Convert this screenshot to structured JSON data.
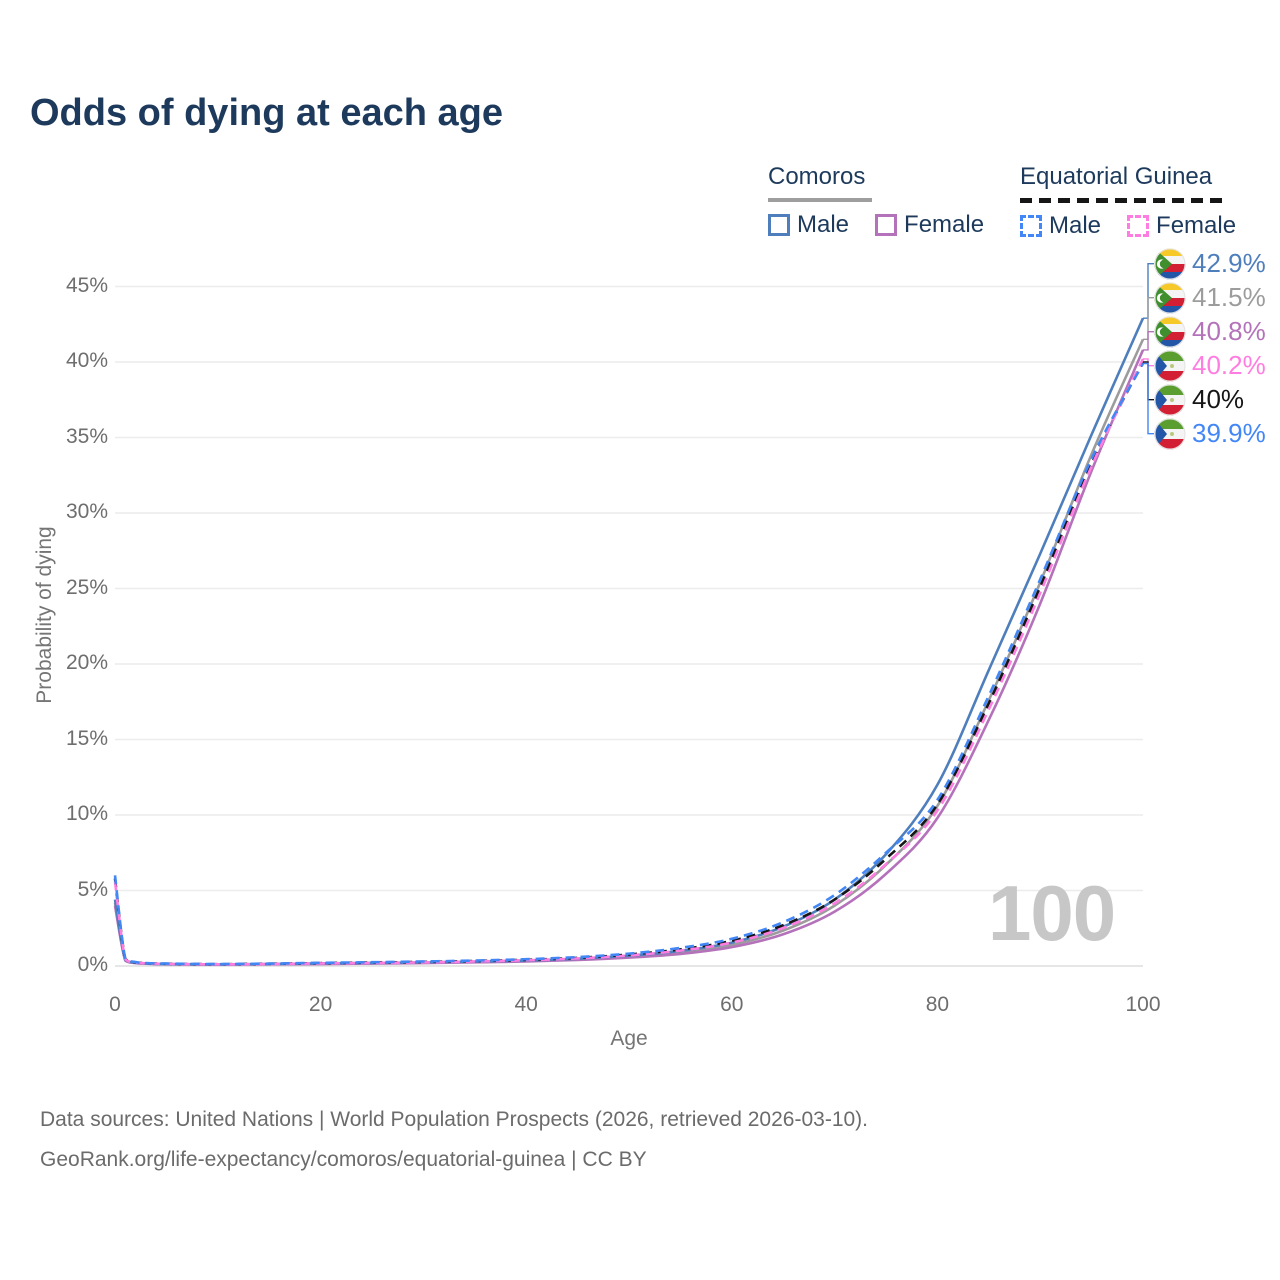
{
  "title": "Odds of dying at each age",
  "legend": {
    "groups": [
      {
        "label": "Comoros",
        "underline_style": "solid",
        "underline_color": "#9e9e9e",
        "items": [
          {
            "label": "Male",
            "color": "#4e7fbc",
            "dashed": false
          },
          {
            "label": "Female",
            "color": "#b472ba",
            "dashed": false
          }
        ]
      },
      {
        "label": "Equatorial Guinea",
        "underline_style": "dashed",
        "underline_color": "#161616",
        "items": [
          {
            "label": "Male",
            "color": "#4287f5",
            "dashed": true
          },
          {
            "label": "Female",
            "color": "#ff7de1",
            "dashed": true
          }
        ]
      }
    ]
  },
  "chart_data": {
    "type": "line",
    "title": "Odds of dying at each age",
    "xlabel": "Age",
    "ylabel": "Probability of dying",
    "xlim": [
      0,
      100
    ],
    "ylim": [
      0,
      45
    ],
    "x_ticks": [
      0,
      20,
      40,
      60,
      80,
      100
    ],
    "y_ticks": [
      "0%",
      "5%",
      "10%",
      "15%",
      "20%",
      "25%",
      "30%",
      "35%",
      "40%",
      "45%"
    ],
    "grid": "horizontal",
    "legend_position": "top-right",
    "x": [
      0,
      1,
      2,
      3,
      5,
      10,
      15,
      20,
      25,
      30,
      35,
      40,
      45,
      50,
      55,
      60,
      65,
      70,
      75,
      80,
      85,
      90,
      95,
      100
    ],
    "series": [
      {
        "name": "Comoros Male",
        "country": "Comoros",
        "sex": "Male",
        "color": "#4e7fbc",
        "dash": "solid",
        "flag": "comoros",
        "end_label": "42.9%",
        "values": [
          4.4,
          0.4,
          0.22,
          0.17,
          0.13,
          0.11,
          0.13,
          0.17,
          0.2,
          0.24,
          0.29,
          0.36,
          0.48,
          0.68,
          1.0,
          1.55,
          2.6,
          4.4,
          7.4,
          12.0,
          19.6,
          27.3,
          35.2,
          42.9
        ]
      },
      {
        "name": "Comoros Both sexes",
        "country": "Comoros",
        "sex": "Both",
        "color": "#9c9c9c",
        "dash": "solid",
        "flag": "comoros",
        "end_label": "41.5%",
        "values": [
          4.2,
          0.38,
          0.21,
          0.16,
          0.12,
          0.1,
          0.12,
          0.15,
          0.18,
          0.22,
          0.27,
          0.33,
          0.44,
          0.62,
          0.9,
          1.4,
          2.35,
          4.0,
          6.7,
          10.6,
          17.6,
          25.4,
          33.9,
          41.5
        ]
      },
      {
        "name": "Comoros Female",
        "country": "Comoros",
        "sex": "Female",
        "color": "#b472ba",
        "dash": "solid",
        "flag": "comoros",
        "end_label": "40.8%",
        "values": [
          4.0,
          0.36,
          0.19,
          0.15,
          0.11,
          0.09,
          0.11,
          0.13,
          0.16,
          0.19,
          0.24,
          0.3,
          0.4,
          0.56,
          0.8,
          1.25,
          2.1,
          3.6,
          6.1,
          9.8,
          16.3,
          24.0,
          32.8,
          40.8
        ]
      },
      {
        "name": "Equatorial Guinea Female",
        "country": "Equatorial Guinea",
        "sex": "Female",
        "color": "#ff7de1",
        "dash": "dashed",
        "flag": "equatorial-guinea",
        "end_label": "40.2%",
        "values": [
          5.6,
          0.44,
          0.23,
          0.18,
          0.14,
          0.11,
          0.13,
          0.17,
          0.2,
          0.24,
          0.3,
          0.38,
          0.5,
          0.7,
          1.02,
          1.55,
          2.52,
          4.15,
          6.75,
          10.3,
          17.0,
          24.7,
          33.1,
          40.2
        ]
      },
      {
        "name": "Equatorial Guinea Both sexes",
        "country": "Equatorial Guinea",
        "sex": "Both",
        "color": "#161616",
        "dash": "dashed",
        "flag": "equatorial-guinea",
        "end_label": "40%",
        "values": [
          5.8,
          0.47,
          0.24,
          0.19,
          0.15,
          0.12,
          0.15,
          0.19,
          0.23,
          0.27,
          0.33,
          0.41,
          0.54,
          0.76,
          1.1,
          1.67,
          2.7,
          4.4,
          7.1,
          10.7,
          17.4,
          25.1,
          33.3,
          40.0
        ]
      },
      {
        "name": "Equatorial Guinea Male",
        "country": "Equatorial Guinea",
        "sex": "Male",
        "color": "#4287f5",
        "dash": "dashed",
        "flag": "equatorial-guinea",
        "end_label": "39.9%",
        "values": [
          6.0,
          0.5,
          0.26,
          0.2,
          0.16,
          0.13,
          0.16,
          0.21,
          0.25,
          0.3,
          0.36,
          0.45,
          0.59,
          0.82,
          1.2,
          1.8,
          2.9,
          4.7,
          7.5,
          11.0,
          17.9,
          25.6,
          33.6,
          39.9
        ]
      }
    ]
  },
  "watermark": "100",
  "footer": {
    "line1": "Data sources: United Nations | World Population Prospects (2026, retrieved 2026-03-10).",
    "line2": "GeoRank.org/life-expectancy/comoros/equatorial-guinea | CC BY"
  },
  "colors": {
    "title_text": "#1d3a5c",
    "axis_text": "#6e6e6e",
    "grid_line": "#ececec",
    "watermark": "#c7c7c7"
  }
}
